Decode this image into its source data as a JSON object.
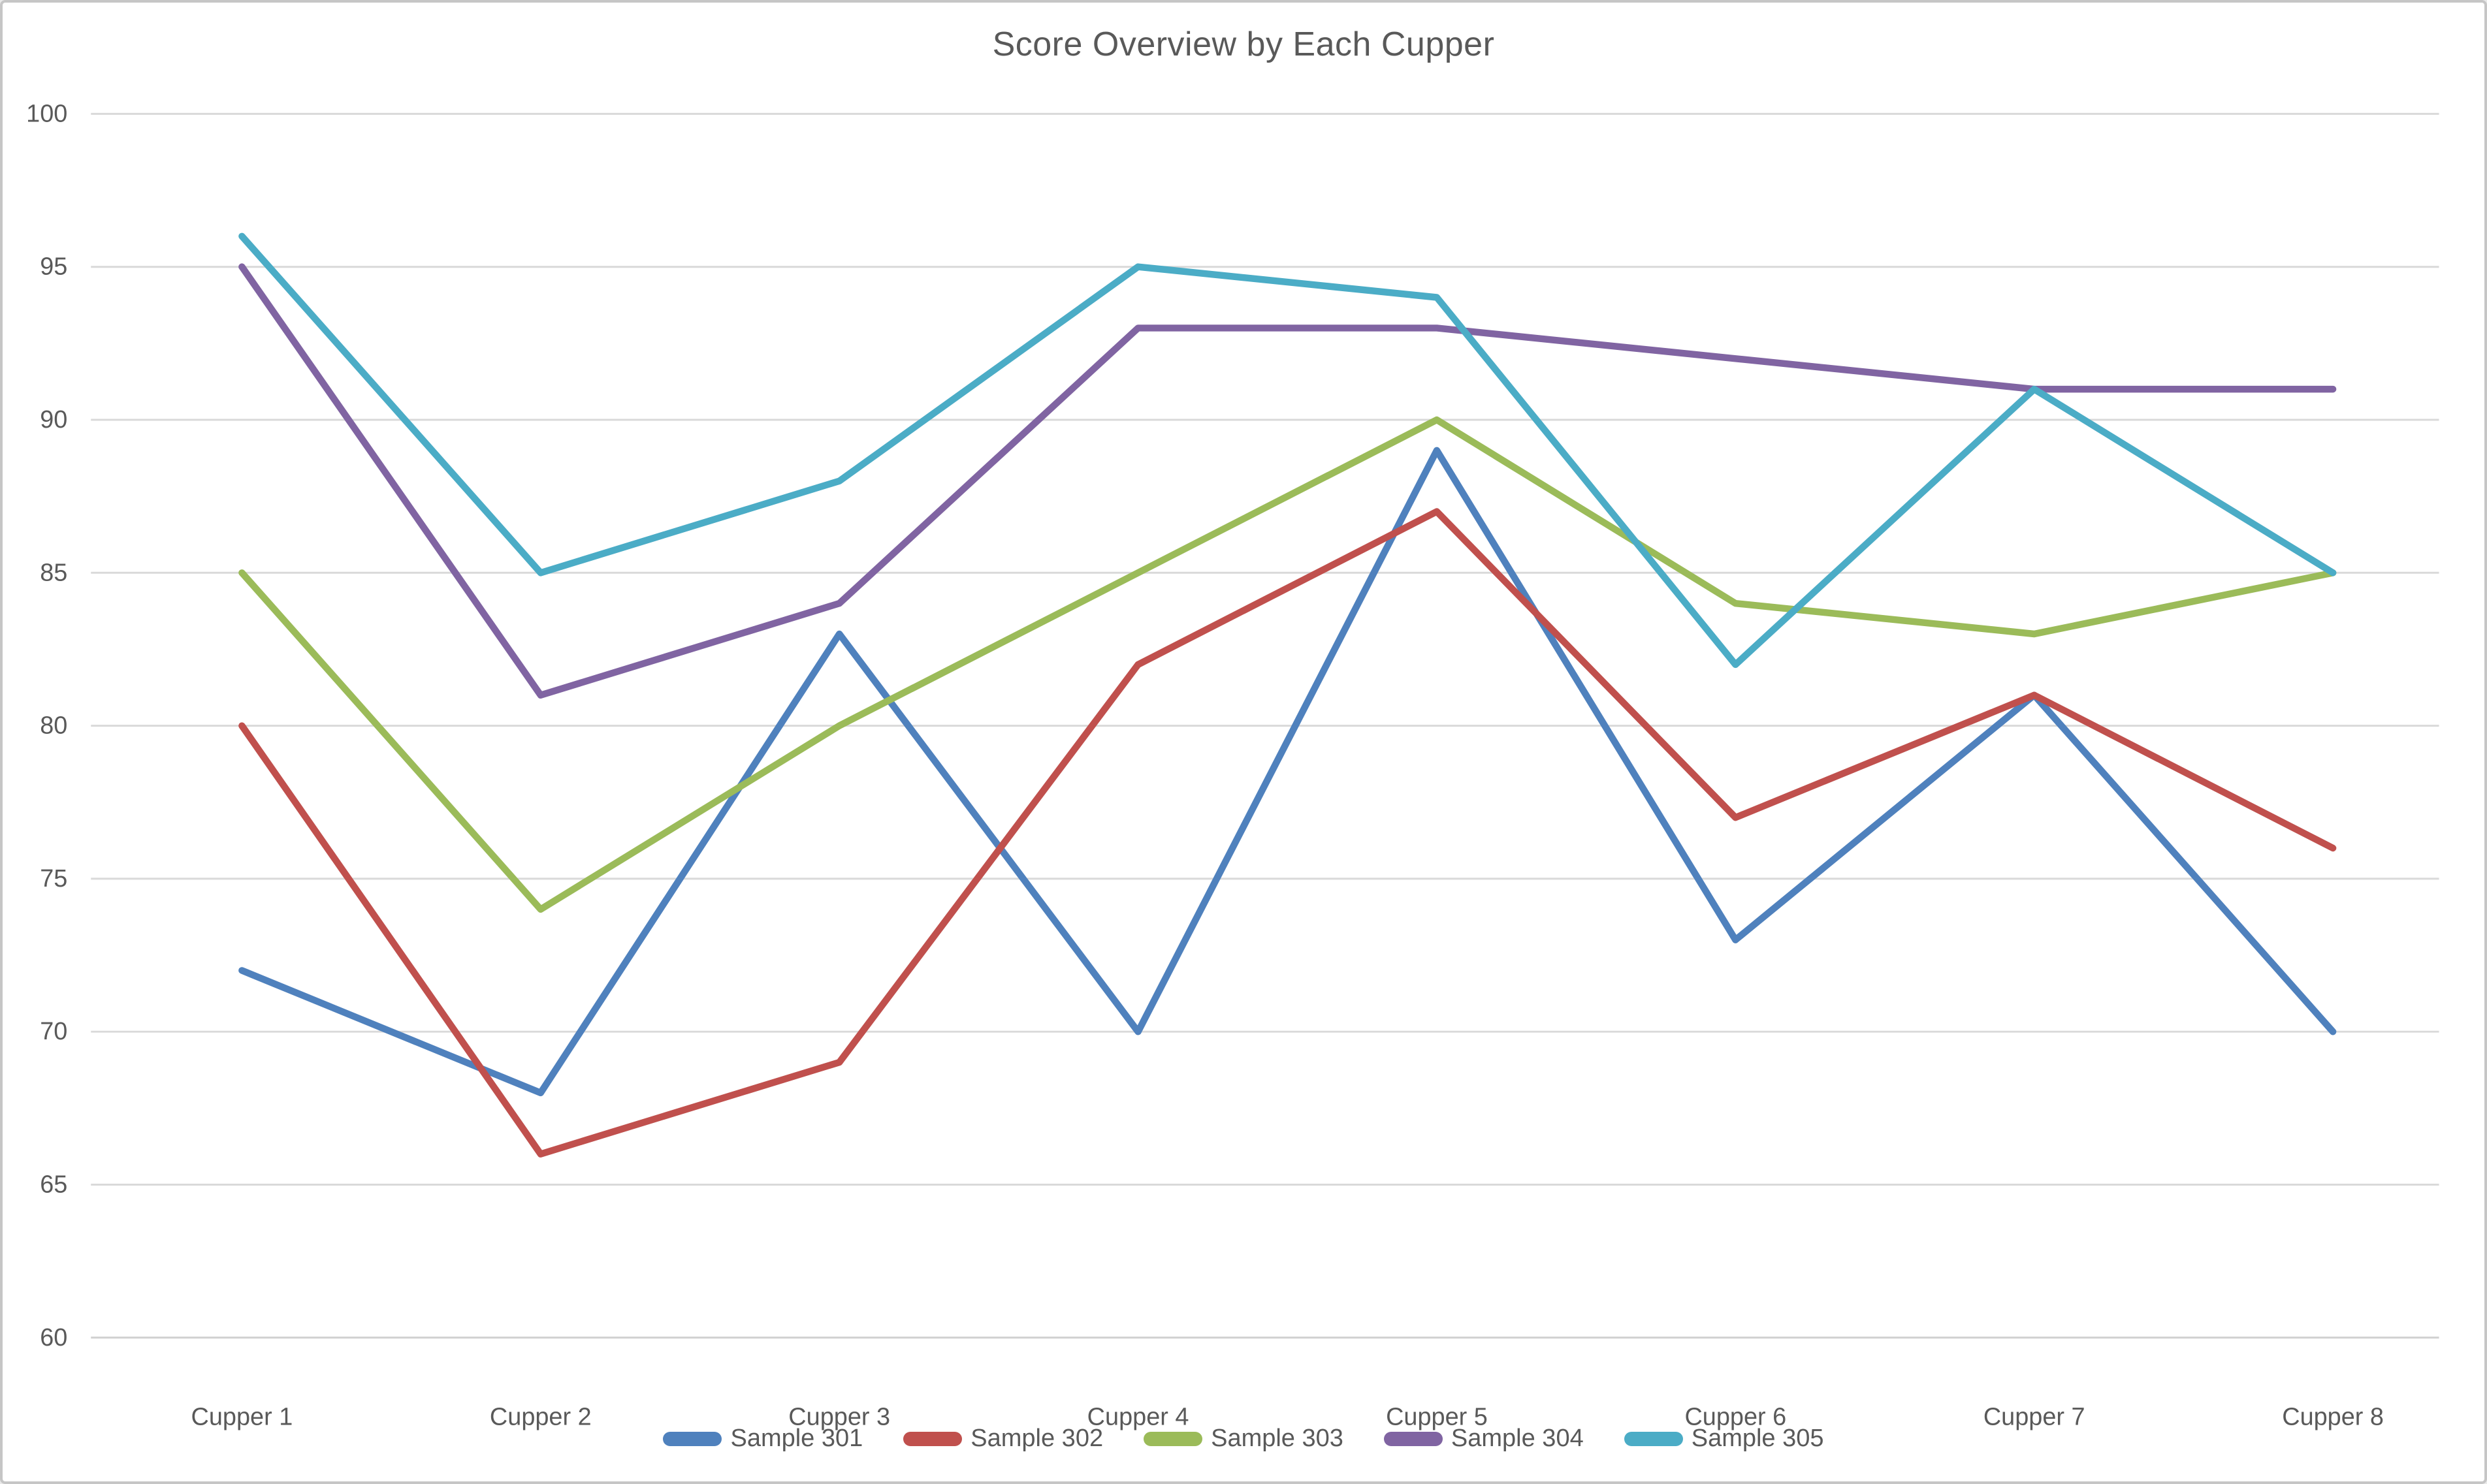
{
  "chart_data": {
    "type": "line",
    "title": "Score Overview by Each Cupper",
    "categories": [
      "Cupper 1",
      "Cupper 2",
      "Cupper 3",
      "Cupper 4",
      "Cupper 5",
      "Cupper 6",
      "Cupper 7",
      "Cupper 8"
    ],
    "series": [
      {
        "name": "Sample 301",
        "color": "#4F81BD",
        "values": [
          72,
          68,
          83,
          70,
          89,
          73,
          81,
          70
        ]
      },
      {
        "name": "Sample 302",
        "color": "#C0504D",
        "values": [
          80,
          66,
          69,
          82,
          87,
          77,
          81,
          76
        ]
      },
      {
        "name": "Sample 303",
        "color": "#9BBB59",
        "values": [
          85,
          74,
          80,
          85,
          90,
          84,
          83,
          85
        ]
      },
      {
        "name": "Sample 304",
        "color": "#8064A2",
        "values": [
          95,
          81,
          84,
          93,
          93,
          92,
          91,
          91
        ]
      },
      {
        "name": "Sample 305",
        "color": "#4BACC6",
        "values": [
          96,
          85,
          88,
          95,
          94,
          82,
          91,
          85
        ]
      }
    ],
    "xlabel": "",
    "ylabel": "",
    "ylim": [
      60,
      100
    ],
    "ytick_step": 5,
    "yticks": [
      60,
      65,
      70,
      75,
      80,
      85,
      90,
      95,
      100
    ],
    "grid": true,
    "legend_position": "bottom"
  },
  "style_colors": {
    "text": "#595959",
    "gridline": "#D9D9D9",
    "axis_line": "#D0D0D0",
    "background": "#FFFFFF",
    "frame_border": "#C6C6C6"
  }
}
